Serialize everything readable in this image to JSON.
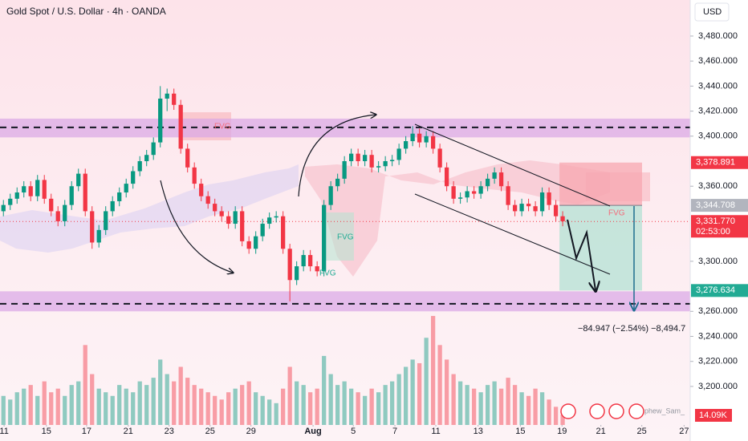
{
  "chart_data": {
    "type": "candlestick",
    "title": "Gold Spot / U.S. Dollar · 4h · OANDA",
    "currency": "USD",
    "up_color": "#089981",
    "down_color": "#f23645",
    "open": [
      3340,
      3345,
      3350,
      3355,
      3360,
      3352,
      3365,
      3350,
      3340,
      3332,
      3345,
      3360,
      3370,
      3340,
      3315,
      3325,
      3340,
      3348,
      3355,
      3362,
      3372,
      3380,
      3385,
      3395,
      3430,
      3434,
      3425,
      3390,
      3375,
      3362,
      3352,
      3346,
      3340,
      3336,
      3330,
      3340,
      3316,
      3310,
      3320,
      3330,
      3335,
      3336,
      3310,
      3285,
      3296,
      3305,
      3296,
      3292,
      3345,
      3360,
      3366,
      3380,
      3386,
      3380,
      3385,
      3375,
      3376,
      3380,
      3381,
      3390,
      3396,
      3402,
      3395,
      3400,
      3390,
      3375,
      3360,
      3350,
      3351,
      3356,
      3354,
      3360,
      3366,
      3371,
      3360,
      3345,
      3340,
      3346,
      3344,
      3340,
      3355,
      3345,
      3336
    ],
    "high": [
      3349,
      3354,
      3359,
      3364,
      3364,
      3369,
      3369,
      3354,
      3344,
      3349,
      3364,
      3374,
      3374,
      3344,
      3329,
      3344,
      3352,
      3359,
      3366,
      3376,
      3384,
      3389,
      3399,
      3440,
      3438,
      3438,
      3429,
      3394,
      3379,
      3366,
      3356,
      3350,
      3344,
      3340,
      3344,
      3344,
      3320,
      3324,
      3334,
      3339,
      3340,
      3340,
      3314,
      3300,
      3309,
      3309,
      3300,
      3349,
      3364,
      3370,
      3384,
      3390,
      3390,
      3389,
      3389,
      3380,
      3384,
      3385,
      3394,
      3400,
      3408,
      3406,
      3404,
      3404,
      3394,
      3379,
      3364,
      3355,
      3360,
      3360,
      3364,
      3370,
      3375,
      3375,
      3364,
      3349,
      3350,
      3350,
      3348,
      3359,
      3359,
      3349,
      3340
    ],
    "low": [
      3336,
      3341,
      3346,
      3351,
      3348,
      3348,
      3346,
      3336,
      3328,
      3328,
      3341,
      3356,
      3336,
      3310,
      3311,
      3321,
      3336,
      3344,
      3351,
      3358,
      3368,
      3376,
      3381,
      3391,
      3420,
      3421,
      3386,
      3371,
      3358,
      3348,
      3342,
      3336,
      3332,
      3326,
      3326,
      3312,
      3306,
      3306,
      3316,
      3326,
      3331,
      3306,
      3268,
      3281,
      3292,
      3292,
      3288,
      3288,
      3341,
      3356,
      3362,
      3376,
      3376,
      3376,
      3371,
      3371,
      3372,
      3376,
      3377,
      3386,
      3392,
      3391,
      3391,
      3386,
      3371,
      3356,
      3346,
      3346,
      3347,
      3350,
      3350,
      3356,
      3362,
      3356,
      3341,
      3336,
      3336,
      3340,
      3336,
      3336,
      3341,
      3332,
      3328
    ],
    "close": [
      3345,
      3350,
      3355,
      3360,
      3352,
      3365,
      3350,
      3340,
      3332,
      3345,
      3360,
      3370,
      3340,
      3315,
      3325,
      3340,
      3348,
      3355,
      3362,
      3372,
      3380,
      3385,
      3395,
      3430,
      3434,
      3425,
      3390,
      3375,
      3362,
      3352,
      3346,
      3340,
      3336,
      3330,
      3340,
      3316,
      3310,
      3320,
      3330,
      3335,
      3336,
      3310,
      3285,
      3296,
      3305,
      3296,
      3292,
      3345,
      3360,
      3366,
      3380,
      3386,
      3380,
      3385,
      3375,
      3376,
      3380,
      3381,
      3390,
      3396,
      3402,
      3395,
      3400,
      3390,
      3375,
      3360,
      3350,
      3351,
      3356,
      3354,
      3360,
      3366,
      3371,
      3360,
      3345,
      3340,
      3346,
      3344,
      3340,
      3355,
      3345,
      3336,
      3332
    ],
    "volume": [
      40,
      35,
      45,
      50,
      55,
      40,
      60,
      45,
      50,
      40,
      55,
      60,
      110,
      70,
      50,
      45,
      40,
      55,
      50,
      45,
      60,
      55,
      65,
      90,
      70,
      60,
      80,
      65,
      55,
      50,
      45,
      40,
      35,
      45,
      50,
      55,
      60,
      45,
      40,
      35,
      30,
      50,
      80,
      60,
      55,
      45,
      50,
      95,
      70,
      55,
      60,
      50,
      45,
      40,
      50,
      45,
      55,
      60,
      70,
      80,
      90,
      85,
      120,
      150,
      110,
      90,
      70,
      60,
      55,
      50,
      45,
      55,
      60,
      50,
      65,
      55,
      45,
      40,
      50,
      45,
      35,
      25,
      14.09
    ],
    "volume_label": "14.09K",
    "vlim": [
      0,
      160
    ],
    "xlim": [
      -0.5,
      100.7
    ],
    "xticks": [
      {
        "value": 0.1,
        "label": "11"
      },
      {
        "value": 6.3,
        "label": "15"
      },
      {
        "value": 12.2,
        "label": "17"
      },
      {
        "value": 18.3,
        "label": "21"
      },
      {
        "value": 24.3,
        "label": "23"
      },
      {
        "value": 30.3,
        "label": "25"
      },
      {
        "value": 36.3,
        "label": "29"
      },
      {
        "value": 45.4,
        "label": "Aug"
      },
      {
        "value": 51.3,
        "label": "5"
      },
      {
        "value": 57.4,
        "label": "7"
      },
      {
        "value": 63.4,
        "label": "11"
      },
      {
        "value": 69.6,
        "label": "13"
      },
      {
        "value": 75.8,
        "label": "15"
      },
      {
        "value": 81.9,
        "label": "19"
      },
      {
        "value": 87.6,
        "label": "21"
      },
      {
        "value": 93.6,
        "label": "25"
      },
      {
        "value": 99.8,
        "label": "27"
      }
    ],
    "ylim": [
      3169.2,
      3508.8
    ],
    "yticks": [
      {
        "value": 3200,
        "label": "3,200.000"
      },
      {
        "value": 3220,
        "label": "3,220.000"
      },
      {
        "value": 3240,
        "label": "3,240.000"
      },
      {
        "value": 3260,
        "label": "3,260.000"
      },
      {
        "value": 3300,
        "label": "3,300.000"
      },
      {
        "value": 3360,
        "label": "3,360.000"
      },
      {
        "value": 3400,
        "label": "3,400.000"
      },
      {
        "value": 3420,
        "label": "3,420.000"
      },
      {
        "value": 3440,
        "label": "3,440.000"
      },
      {
        "value": 3460,
        "label": "3,460.000"
      },
      {
        "value": 3480,
        "label": "3,480.000"
      }
    ],
    "zones": [
      {
        "from": 3399,
        "to": 3414,
        "line": 3407
      },
      {
        "from": 3260,
        "to": 3276,
        "line": 3266
      }
    ],
    "price_labels": [
      {
        "value": 3378.891,
        "label": "3,378.891",
        "color": "#f23645"
      },
      {
        "value": 3344.708,
        "label": "3,344.708",
        "color": "#b2b5be"
      },
      {
        "value": 3331.77,
        "label": "3,331.770",
        "color": "#f23645"
      },
      {
        "value": 3276.634,
        "label": "3,276.634",
        "color": "#22ab94"
      }
    ],
    "countdown": "02:53:00",
    "annotations": [
      "FVG",
      "FVG",
      "FVG",
      "FVG",
      "−84.947 (−2.54%) −8,494.7",
      "phew_Sam_"
    ]
  }
}
